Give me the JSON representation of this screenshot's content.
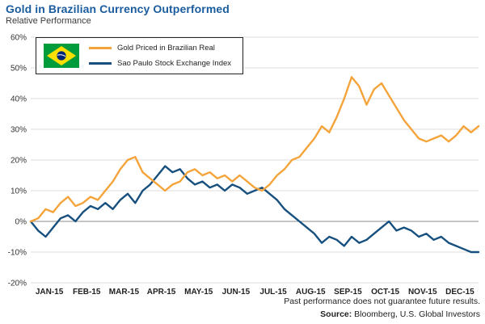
{
  "header": {
    "title": "Gold in Brazilian Currency Outperformed",
    "subtitle": "Relative Performance"
  },
  "colors": {
    "title": "#1a5c9e",
    "gold_line": "#f4a43a",
    "index_line": "#17507e",
    "zero_line": "#8c8c8c",
    "gridline": "#dcdcdc"
  },
  "chart_data": {
    "type": "line",
    "title": "Gold in Brazilian Currency Outperformed",
    "subtitle": "Relative Performance",
    "ylabel": "Relative Performance (%)",
    "ylim": [
      -20,
      60
    ],
    "ytick_values": [
      60,
      50,
      40,
      30,
      20,
      10,
      0,
      -10,
      -20
    ],
    "ytick_labels": [
      "60%",
      "50%",
      "40%",
      "30%",
      "20%",
      "10%",
      "0%",
      "-10%",
      "-20%"
    ],
    "x_labels": [
      "JAN-15",
      "FEB-15",
      "MAR-15",
      "APR-15",
      "MAY-15",
      "JUN-15",
      "JUL-15",
      "AUG-15",
      "SEP-15",
      "OCT-15",
      "NOV-15",
      "DEC-15"
    ],
    "grid": "horizontal",
    "legend_position": "top-left",
    "series": [
      {
        "name": "Gold Priced in Brazilian Real",
        "color": "#f4a43a",
        "values": [
          0,
          1,
          4,
          3,
          6,
          8,
          5,
          6,
          8,
          7,
          10,
          13,
          17,
          20,
          21,
          16,
          14,
          12,
          10,
          12,
          13,
          16,
          17,
          15,
          16,
          14,
          15,
          13,
          15,
          13,
          11,
          10,
          12,
          15,
          17,
          20,
          21,
          24,
          27,
          31,
          29,
          34,
          40,
          47,
          44,
          38,
          43,
          45,
          41,
          37,
          33,
          30,
          27,
          26,
          27,
          28,
          26,
          28,
          31,
          29,
          31
        ]
      },
      {
        "name": "Sao Paulo Stock Exchange Index",
        "color": "#17507e",
        "values": [
          0,
          -3,
          -5,
          -2,
          1,
          2,
          0,
          3,
          5,
          4,
          6,
          4,
          7,
          9,
          6,
          10,
          12,
          15,
          18,
          16,
          17,
          14,
          12,
          13,
          11,
          12,
          10,
          12,
          11,
          9,
          10,
          11,
          9,
          7,
          4,
          2,
          0,
          -2,
          -4,
          -7,
          -5,
          -6,
          -8,
          -5,
          -7,
          -6,
          -4,
          -2,
          0,
          -3,
          -2,
          -3,
          -5,
          -4,
          -6,
          -5,
          -7,
          -8,
          -9,
          -10,
          -10
        ]
      }
    ]
  },
  "legend": {
    "flag": "brazil-flag"
  },
  "footer": {
    "disclaimer": "Past performance does not guarantee future results.",
    "source_label": "Source:",
    "source_text": " Bloomberg, U.S. Global Investors"
  }
}
